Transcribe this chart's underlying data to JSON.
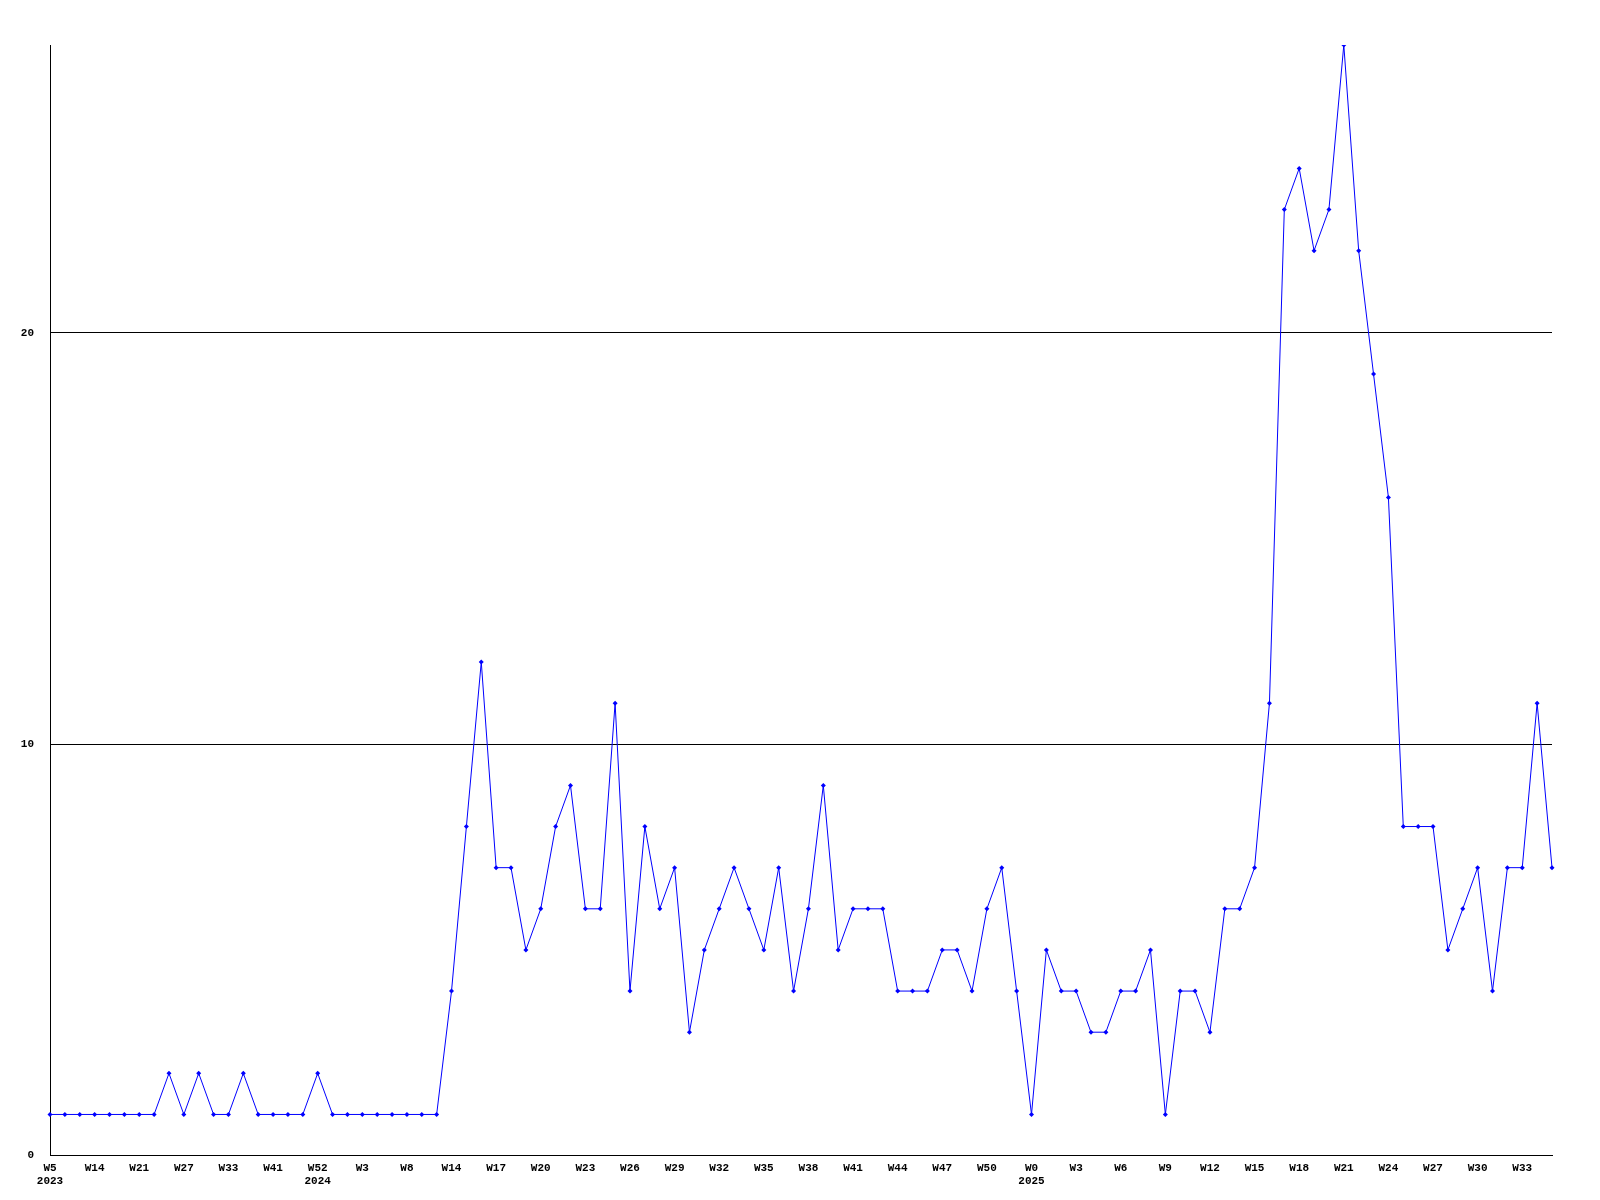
{
  "chart_data": {
    "type": "line",
    "categories": [
      "W5\n2023",
      null,
      null,
      "W14",
      null,
      null,
      "W21",
      null,
      null,
      "W27",
      null,
      null,
      "W33",
      null,
      null,
      "W41",
      null,
      null,
      "W52\n2024",
      null,
      null,
      "W3",
      null,
      null,
      "W8",
      null,
      null,
      "W14",
      null,
      null,
      "W17",
      null,
      null,
      "W20",
      null,
      null,
      "W23",
      null,
      null,
      "W26",
      null,
      null,
      "W29",
      null,
      null,
      "W32",
      null,
      null,
      "W35",
      null,
      null,
      "W38",
      null,
      null,
      "W41",
      null,
      null,
      "W44",
      null,
      null,
      "W47",
      null,
      null,
      "W50",
      null,
      null,
      "W0\n2025",
      null,
      null,
      "W3",
      null,
      null,
      "W6",
      null,
      null,
      "W9",
      null,
      null,
      "W12",
      null,
      null,
      "W15",
      null,
      null,
      "W18",
      null,
      null,
      "W21",
      null,
      null,
      "W24",
      null,
      null,
      "W27",
      null,
      null,
      "W30",
      null,
      null,
      "W33",
      null,
      null
    ],
    "series": [
      {
        "color": "#0000ff",
        "values": [
          1,
          1,
          1,
          1,
          1,
          1,
          1,
          1,
          2,
          1,
          2,
          1,
          1,
          2,
          1,
          1,
          1,
          1,
          2,
          1,
          1,
          1,
          1,
          1,
          1,
          1,
          1,
          4,
          8,
          12,
          7,
          7,
          5,
          6,
          8,
          9,
          6,
          6,
          11,
          4,
          8,
          6,
          7,
          3,
          5,
          6,
          7,
          6,
          5,
          7,
          4,
          6,
          9,
          5,
          6,
          6,
          6,
          4,
          4,
          4,
          5,
          5,
          4,
          6,
          7,
          4,
          1,
          5,
          4,
          4,
          3,
          3,
          4,
          4,
          5,
          1,
          4,
          4,
          3,
          6,
          6,
          7,
          11,
          23,
          24,
          22,
          23,
          27,
          22,
          19,
          16,
          8,
          8,
          8,
          5,
          6,
          7,
          4,
          7,
          7,
          11,
          7
        ]
      }
    ],
    "ylim": [
      0,
      27
    ],
    "yticks": [
      0,
      10,
      20
    ],
    "grid": "y",
    "legend": false,
    "marker": "diamond",
    "line_style": "solid"
  }
}
